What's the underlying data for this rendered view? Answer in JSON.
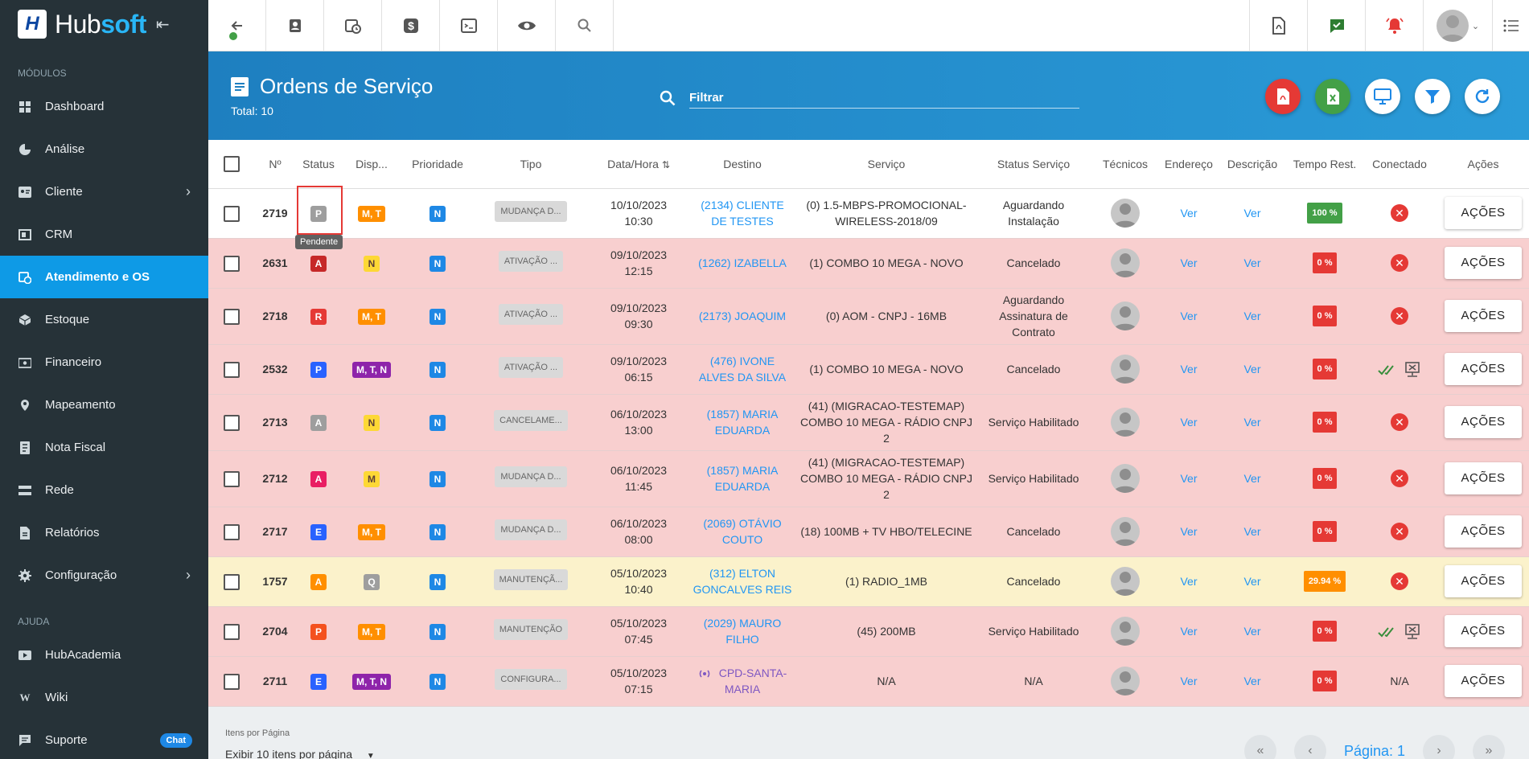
{
  "sidebar": {
    "brand": {
      "part1": "Hub",
      "part2": "soft",
      "logo_letter": "H"
    },
    "section_modules": "MÓDULOS",
    "section_help": "AJUDA",
    "items": [
      {
        "label": "Dashboard",
        "icon": "dashboard-icon"
      },
      {
        "label": "Análise",
        "icon": "pie-chart-icon"
      },
      {
        "label": "Cliente",
        "icon": "client-card-icon",
        "chevron": true
      },
      {
        "label": "CRM",
        "icon": "crm-icon"
      },
      {
        "label": "Atendimento e OS",
        "icon": "calendar-clock-icon",
        "active": true
      },
      {
        "label": "Estoque",
        "icon": "box-icon"
      },
      {
        "label": "Financeiro",
        "icon": "money-icon"
      },
      {
        "label": "Mapeamento",
        "icon": "map-pin-icon"
      },
      {
        "label": "Nota Fiscal",
        "icon": "invoice-icon"
      },
      {
        "label": "Rede",
        "icon": "network-icon"
      },
      {
        "label": "Relatórios",
        "icon": "report-icon"
      },
      {
        "label": "Configuração",
        "icon": "gear-icon",
        "chevron": true
      }
    ],
    "help_items": [
      {
        "label": "HubAcademia",
        "icon": "video-icon"
      },
      {
        "label": "Wiki",
        "icon": "wiki-icon"
      },
      {
        "label": "Suporte",
        "icon": "chat-icon",
        "badge": "Chat"
      }
    ]
  },
  "header": {
    "title": "Ordens de Serviço",
    "total": "Total: 10",
    "search_placeholder": "Filtrar"
  },
  "colors": {
    "sidebar_bg": "#263238",
    "active": "#0e9ae6",
    "pdf": "#e53935",
    "excel": "#43a047",
    "header_bg": "#2a9bd8"
  },
  "table": {
    "columns": [
      "Nº",
      "Status",
      "Disp...",
      "Prioridade",
      "Tipo",
      "Data/Hora",
      "Destino",
      "Serviço",
      "Status Serviço",
      "Técnicos",
      "Endereço",
      "Descrição",
      "Tempo Rest.",
      "Conectado",
      "Ações"
    ],
    "rows": [
      {
        "num": "2719",
        "status": "P",
        "status_color": "#9e9e9e",
        "disp": "M, T",
        "disp_color": "#ff8f00",
        "prio": "N",
        "tipo": "MUDANÇA D...",
        "date": "10/10/2023",
        "time": "10:30",
        "destino": "(2134) CLIENTE DE TESTES",
        "servico": "(0) 1.5-MBPS-PROMOCIONAL-WIRELESS-2018/09",
        "status_servico": "Aguardando Instalação",
        "endereco": "Ver",
        "descricao": "Ver",
        "tempo": "100 %",
        "tempo_color": "#43a047",
        "conectado": "x",
        "row_class": "white"
      },
      {
        "num": "2631",
        "status": "A",
        "status_color": "#c62828",
        "disp": "N",
        "disp_color": "#fdd835",
        "prio": "N",
        "tipo": "ATIVAÇÃO ...",
        "date": "09/10/2023",
        "time": "12:15",
        "destino": "(1262) IZABELLA",
        "servico": "(1) COMBO 10 MEGA - NOVO",
        "status_servico": "Cancelado",
        "endereco": "Ver",
        "descricao": "Ver",
        "tempo": "0 %",
        "tempo_color": "#e53935",
        "conectado": "x",
        "row_class": "pink"
      },
      {
        "num": "2718",
        "status": "R",
        "status_color": "#e53935",
        "disp": "M, T",
        "disp_color": "#ff8f00",
        "prio": "N",
        "tipo": "ATIVAÇÃO ...",
        "date": "09/10/2023",
        "time": "09:30",
        "destino": "(2173) JOAQUIM",
        "servico": "(0) AOM - CNPJ - 16MB",
        "status_servico": "Aguardando Assinatura de Contrato",
        "endereco": "Ver",
        "descricao": "Ver",
        "tempo": "0 %",
        "tempo_color": "#e53935",
        "conectado": "x",
        "row_class": "pink"
      },
      {
        "num": "2532",
        "status": "P",
        "status_color": "#2962ff",
        "disp": "M, T, N",
        "disp_color": "#8e24aa",
        "prio": "N",
        "tipo": "ATIVAÇÃO ...",
        "date": "09/10/2023",
        "time": "06:15",
        "destino": "(476) IVONE ALVES DA SILVA",
        "servico": "(1) COMBO 10 MEGA - NOVO",
        "status_servico": "Cancelado",
        "endereco": "Ver",
        "descricao": "Ver",
        "tempo": "0 %",
        "tempo_color": "#e53935",
        "conectado": "check",
        "row_class": "pink"
      },
      {
        "num": "2713",
        "status": "A",
        "status_color": "#9e9e9e",
        "disp": "N",
        "disp_color": "#fdd835",
        "prio": "N",
        "tipo": "CANCELAME...",
        "date": "06/10/2023",
        "time": "13:00",
        "destino": "(1857) MARIA EDUARDA",
        "servico": "(41) (MIGRACAO-TESTEMAP) COMBO 10 MEGA - RÁDIO CNPJ 2",
        "status_servico": "Serviço Habilitado",
        "endereco": "Ver",
        "descricao": "Ver",
        "tempo": "0 %",
        "tempo_color": "#e53935",
        "conectado": "x",
        "row_class": "pink"
      },
      {
        "num": "2712",
        "status": "A",
        "status_color": "#e91e63",
        "disp": "M",
        "disp_color": "#fdd835",
        "prio": "N",
        "tipo": "MUDANÇA D...",
        "date": "06/10/2023",
        "time": "11:45",
        "destino": "(1857) MARIA EDUARDA",
        "servico": "(41) (MIGRACAO-TESTEMAP) COMBO 10 MEGA - RÁDIO CNPJ 2",
        "status_servico": "Serviço Habilitado",
        "endereco": "Ver",
        "descricao": "Ver",
        "tempo": "0 %",
        "tempo_color": "#e53935",
        "conectado": "x",
        "row_class": "pink"
      },
      {
        "num": "2717",
        "status": "E",
        "status_color": "#2962ff",
        "disp": "M, T",
        "disp_color": "#ff8f00",
        "prio": "N",
        "tipo": "MUDANÇA D...",
        "date": "06/10/2023",
        "time": "08:00",
        "destino": "(2069) OTÁVIO COUTO",
        "servico": "(18) 100MB + TV HBO/TELECINE",
        "status_servico": "Cancelado",
        "endereco": "Ver",
        "descricao": "Ver",
        "tempo": "0 %",
        "tempo_color": "#e53935",
        "conectado": "x",
        "row_class": "pink"
      },
      {
        "num": "1757",
        "status": "A",
        "status_color": "#ff8f00",
        "disp": "Q",
        "disp_color": "#9e9e9e",
        "prio": "N",
        "tipo": "MANUTENÇÃ...",
        "date": "05/10/2023",
        "time": "10:40",
        "destino": "(312) ELTON GONCALVES REIS",
        "servico": "(1) RADIO_1MB",
        "status_servico": "Cancelado",
        "endereco": "Ver",
        "descricao": "Ver",
        "tempo": "29.94 %",
        "tempo_color": "#ff8f00",
        "conectado": "x",
        "row_class": "yellow"
      },
      {
        "num": "2704",
        "status": "P",
        "status_color": "#f4511e",
        "disp": "M, T",
        "disp_color": "#ff8f00",
        "prio": "N",
        "tipo": "MANUTENÇÃO",
        "date": "05/10/2023",
        "time": "07:45",
        "destino": "(2029) MAURO FILHO",
        "servico": "(45) 200MB",
        "status_servico": "Serviço Habilitado",
        "endereco": "Ver",
        "descricao": "Ver",
        "tempo": "0 %",
        "tempo_color": "#e53935",
        "conectado": "check",
        "row_class": "pink"
      },
      {
        "num": "2711",
        "status": "E",
        "status_color": "#2962ff",
        "disp": "M, T, N",
        "disp_color": "#8e24aa",
        "prio": "N",
        "tipo": "CONFIGURA...",
        "date": "05/10/2023",
        "time": "07:15",
        "destino": "CPD-SANTA-MARIA",
        "destino_color": "#7e57c2",
        "servico": "N/A",
        "status_servico": "N/A",
        "endereco": "Ver",
        "descricao": "Ver",
        "tempo": "0 %",
        "tempo_color": "#e53935",
        "conectado": "N/A",
        "row_class": "pink"
      }
    ],
    "action_label": "AÇÕES",
    "tooltip": "Pendente"
  },
  "footer": {
    "per_page_label": "Itens por Página",
    "per_page_value": "Exibir 10 itens por página",
    "page_label": "Página: 1"
  }
}
